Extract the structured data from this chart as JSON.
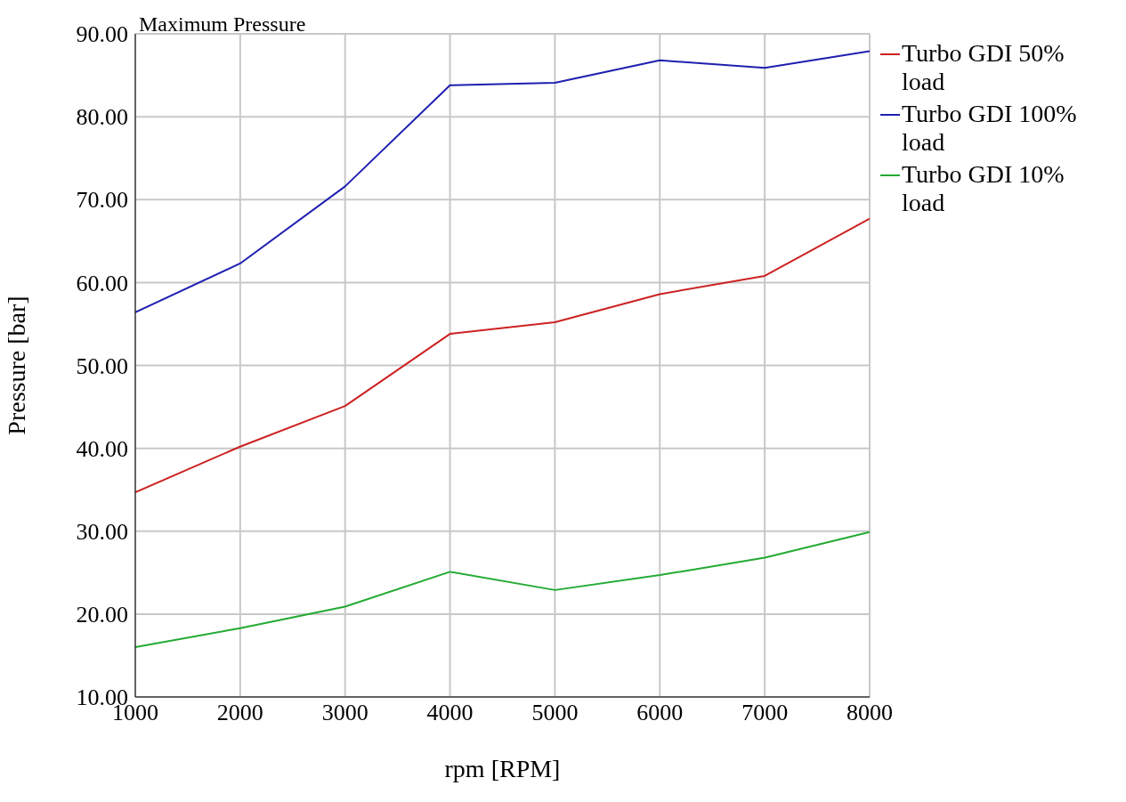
{
  "chart_data": {
    "type": "line",
    "title": "Maximum Pressure",
    "xlabel": "rpm [RPM]",
    "ylabel": "Pressure [bar]",
    "x": [
      1000,
      2000,
      3000,
      4000,
      5000,
      6000,
      7000,
      8000
    ],
    "series": [
      {
        "name": "Turbo GDI 50% load",
        "color": "#cc2222",
        "values": [
          34.7,
          40.2,
          45.1,
          53.8,
          55.2,
          58.6,
          60.8,
          67.7
        ]
      },
      {
        "name": "Turbo GDI 100% load",
        "color": "#1f1fb0",
        "values": [
          56.4,
          62.3,
          71.6,
          83.8,
          84.1,
          86.8,
          85.9,
          87.9
        ]
      },
      {
        "name": "Turbo GDI 10% load",
        "color": "#22aa33",
        "values": [
          16.0,
          18.3,
          20.9,
          25.1,
          22.9,
          24.7,
          26.8,
          29.9
        ]
      }
    ],
    "xlim": [
      1000,
      8000
    ],
    "xticks": [
      1000,
      2000,
      3000,
      4000,
      5000,
      6000,
      7000,
      8000
    ],
    "ylim": [
      10,
      90
    ],
    "yticks": [
      {
        "value": 10,
        "label": "10.00"
      },
      {
        "value": 20,
        "label": "20.00"
      },
      {
        "value": 30,
        "label": "30.00"
      },
      {
        "value": 40,
        "label": "40.00"
      },
      {
        "value": 50,
        "label": "50.00"
      },
      {
        "value": 60,
        "label": "60.00"
      },
      {
        "value": 70,
        "label": "70.00"
      },
      {
        "value": 80,
        "label": "80.00"
      },
      {
        "value": 90,
        "label": "90.00"
      }
    ],
    "grid": true,
    "legend": "top right",
    "marker": "none",
    "line_style": "solid"
  }
}
